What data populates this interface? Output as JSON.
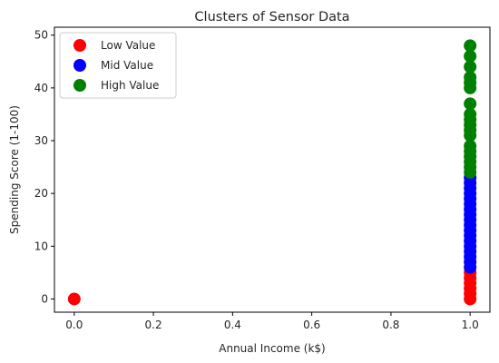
{
  "chart_data": {
    "type": "scatter",
    "title": "Clusters of Sensor Data",
    "xlabel": "Annual Income (k$)",
    "ylabel": "Spending Score (1-100)",
    "xlim": [
      -0.05,
      1.05
    ],
    "ylim": [
      -2.5,
      51.5
    ],
    "xticks": [
      "0.0",
      "0.2",
      "0.4",
      "0.6",
      "0.8",
      "1.0"
    ],
    "yticks": [
      "0",
      "10",
      "20",
      "30",
      "40",
      "50"
    ],
    "grid": false,
    "legend_position": "top-left",
    "series": [
      {
        "name": "Low Value",
        "color": "#ff0000",
        "points": [
          [
            0.0,
            0.0
          ],
          [
            1.0,
            0.0
          ],
          [
            1.0,
            1.0
          ],
          [
            1.0,
            2.0
          ],
          [
            1.0,
            3.0
          ],
          [
            1.0,
            4.0
          ],
          [
            1.0,
            5.0
          ]
        ]
      },
      {
        "name": "Mid Value",
        "color": "#0000ff",
        "points": [
          [
            1.0,
            6.0
          ],
          [
            1.0,
            7.0
          ],
          [
            1.0,
            8.0
          ],
          [
            1.0,
            9.0
          ],
          [
            1.0,
            10.0
          ],
          [
            1.0,
            11.0
          ],
          [
            1.0,
            12.0
          ],
          [
            1.0,
            13.0
          ],
          [
            1.0,
            14.0
          ],
          [
            1.0,
            15.0
          ],
          [
            1.0,
            16.0
          ],
          [
            1.0,
            17.0
          ],
          [
            1.0,
            18.0
          ],
          [
            1.0,
            19.0
          ],
          [
            1.0,
            20.0
          ],
          [
            1.0,
            21.0
          ],
          [
            1.0,
            22.0
          ],
          [
            1.0,
            23.0
          ]
        ]
      },
      {
        "name": "High Value",
        "color": "#008000",
        "points": [
          [
            1.0,
            24.0
          ],
          [
            1.0,
            25.0
          ],
          [
            1.0,
            26.0
          ],
          [
            1.0,
            27.0
          ],
          [
            1.0,
            28.0
          ],
          [
            1.0,
            29.0
          ],
          [
            1.0,
            31.0
          ],
          [
            1.0,
            32.0
          ],
          [
            1.0,
            33.0
          ],
          [
            1.0,
            34.0
          ],
          [
            1.0,
            35.0
          ],
          [
            1.0,
            37.0
          ],
          [
            1.0,
            40.0
          ],
          [
            1.0,
            41.0
          ],
          [
            1.0,
            42.0
          ],
          [
            1.0,
            44.0
          ],
          [
            1.0,
            46.0
          ],
          [
            1.0,
            48.0
          ]
        ]
      }
    ]
  }
}
